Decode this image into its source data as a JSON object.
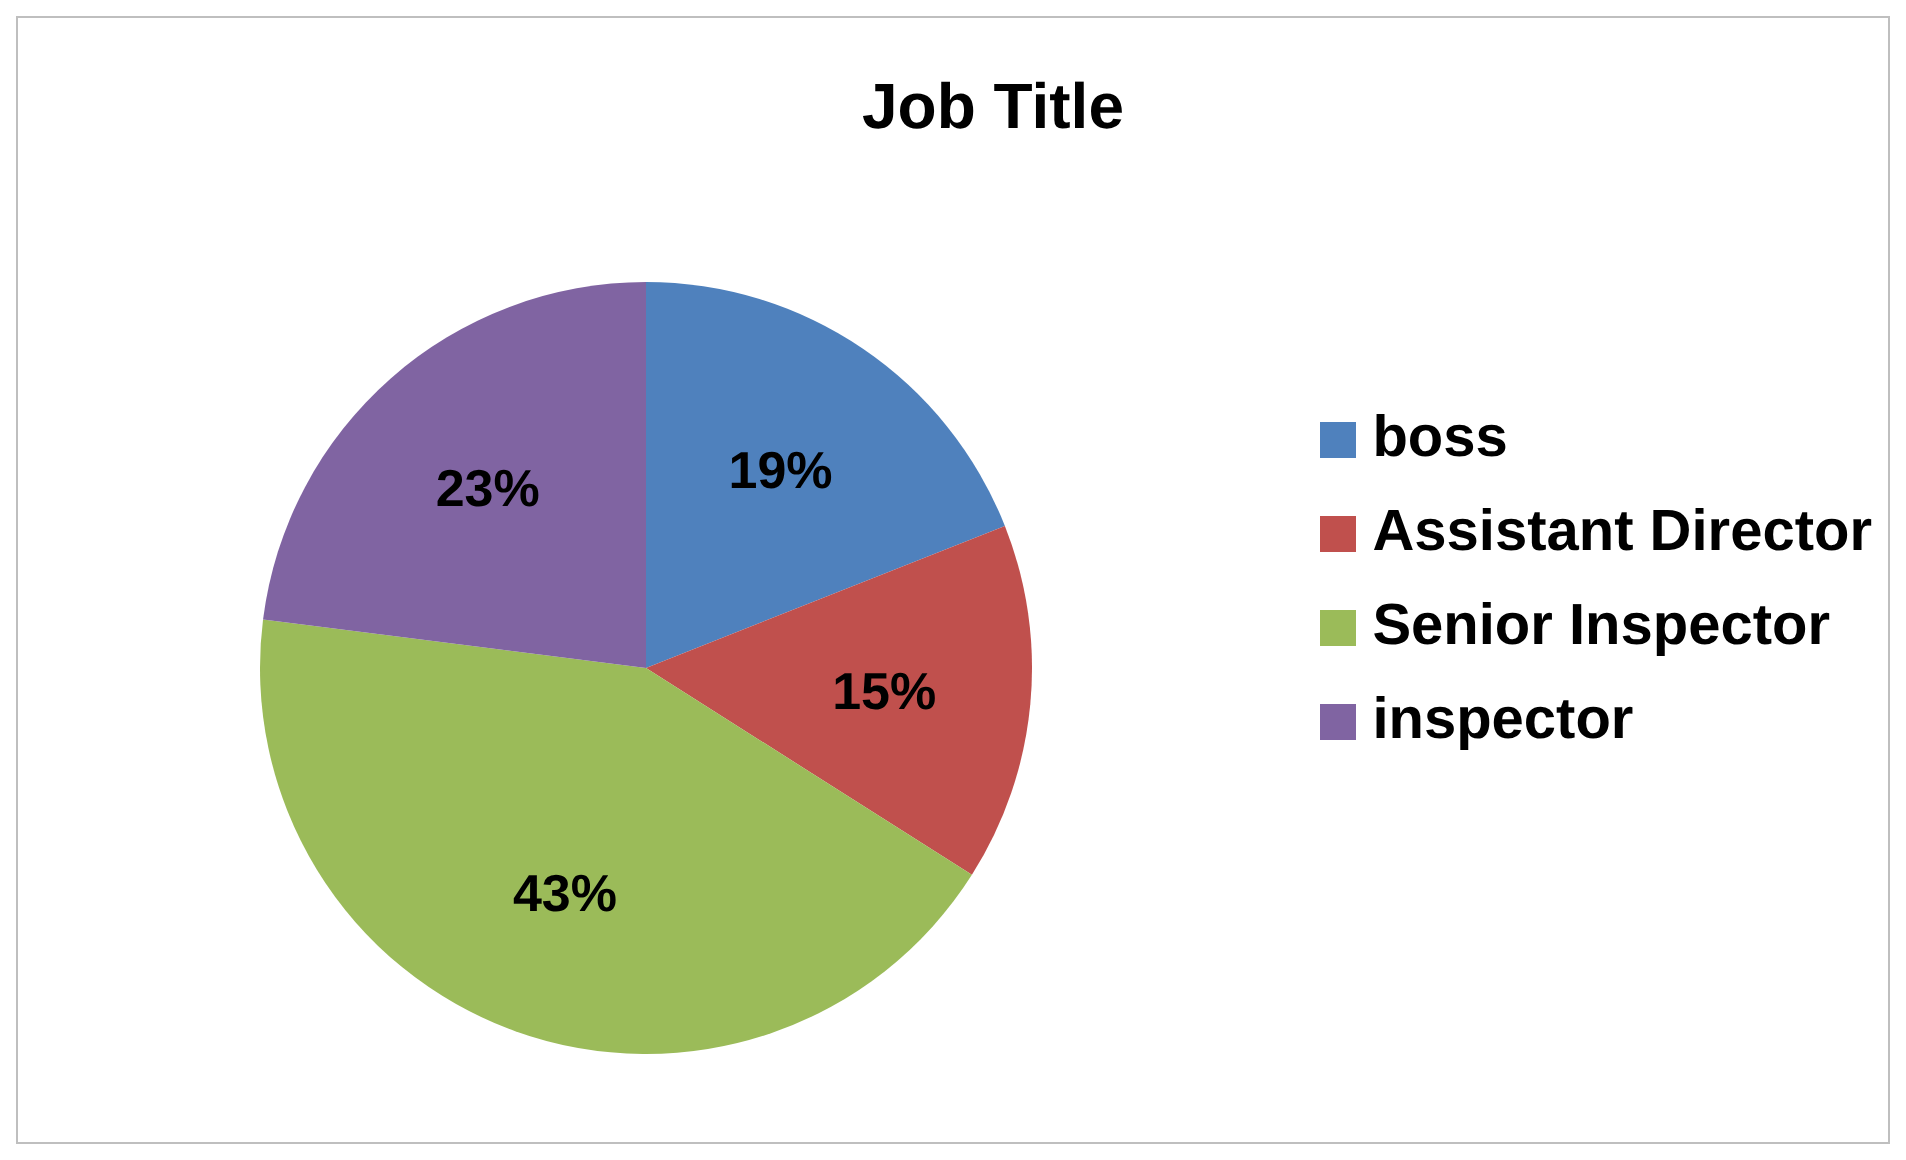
{
  "chart_data": {
    "type": "pie",
    "title": "Job Title",
    "categories": [
      "boss",
      "Assistant Director",
      "Senior Inspector",
      "inspector"
    ],
    "values": [
      19,
      15,
      43,
      23
    ],
    "colors": [
      "#4f81bd",
      "#c0504d",
      "#9bbb59",
      "#8064a2"
    ],
    "value_labels": [
      "19%",
      "15%",
      "43%",
      "23%"
    ],
    "legend": "right"
  }
}
